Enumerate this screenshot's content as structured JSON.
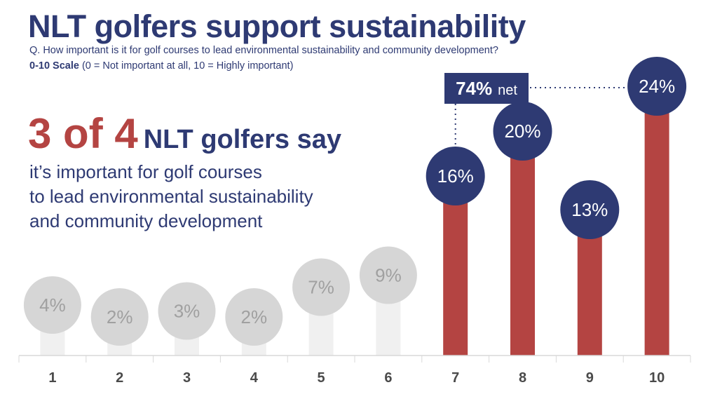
{
  "title": "NLT golfers support sustainability",
  "question": "Q. How important is it for golf courses to lead environmental sustainability and community development?",
  "scale_bold": "0-10 Scale",
  "scale_rest": " (0 = Not important at all, 10 = Highly important)",
  "headline_big": "3 of 4",
  "headline_rest": "NLT golfers say",
  "body_lines": [
    "it’s important for golf courses",
    "to lead environmental sustainability",
    "and community development"
  ],
  "net_value": "74%",
  "net_label": "net",
  "colors": {
    "navy": "#2e3a73",
    "red": "#b44442",
    "gray": "#d6d6d6",
    "gray_bar": "#f0f0f0",
    "gray_text": "#a0a0a0"
  },
  "chart_data": {
    "type": "bar",
    "categories": [
      "1",
      "2",
      "3",
      "4",
      "5",
      "6",
      "7",
      "8",
      "9",
      "10"
    ],
    "values": [
      4,
      2,
      3,
      2,
      7,
      9,
      16,
      20,
      13,
      24
    ],
    "labels": [
      "4%",
      "2%",
      "3%",
      "2%",
      "7%",
      "9%",
      "16%",
      "20%",
      "13%",
      "24%"
    ],
    "highlighted": [
      false,
      false,
      false,
      false,
      false,
      false,
      true,
      true,
      true,
      true
    ],
    "xlabel": "",
    "ylabel": "",
    "ylim": [
      0,
      25
    ]
  }
}
